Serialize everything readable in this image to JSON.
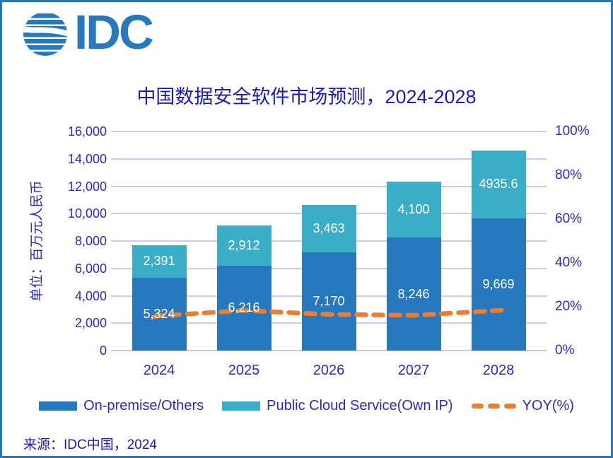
{
  "logo": {
    "text": "IDC"
  },
  "source": "来源：IDC中国，2024",
  "colors": {
    "bar_primary": "#2878BE",
    "bar_secondary": "#3AAEC6",
    "line": "#ED7D31",
    "grid": "#C9C9F2",
    "axis_text": "#2B2BBB",
    "title_text": "#1B1BB0",
    "data_label_text": "#FFFFFF",
    "border": "#2878BE"
  },
  "chart_data": {
    "type": "bar",
    "subtype": "stacked-column-with-line",
    "title": "中国数据安全软件市场预测，2024-2028",
    "categories": [
      "2024",
      "2025",
      "2026",
      "2027",
      "2028"
    ],
    "series": [
      {
        "name": "On-premise/Others",
        "type": "bar",
        "color": "#2878BE",
        "values": [
          5324,
          6216,
          7170,
          8246,
          9669
        ],
        "labels": [
          "5,324",
          "6,216",
          "7,170",
          "8,246",
          "9,669"
        ]
      },
      {
        "name": "Public Cloud Service(Own IP)",
        "type": "bar",
        "color": "#3AAEC6",
        "values": [
          2391,
          2912,
          3463,
          4100,
          4935.6
        ],
        "labels": [
          "2,391",
          "2,912",
          "3,463",
          "4,100",
          "4935.6"
        ]
      },
      {
        "name": "YOY(%)",
        "type": "line",
        "style": "dashed",
        "color": "#ED7D31",
        "axis": "right",
        "values": [
          15.9,
          18.3,
          16.5,
          16.1,
          18.3
        ]
      }
    ],
    "left_axis": {
      "title": "单位：百万元人民币",
      "min": 0,
      "max": 16000,
      "step": 2000,
      "tick_labels": [
        "16,000",
        "14,000",
        "12,000",
        "10,000",
        "8,000",
        "6,000",
        "4,000",
        "2,000",
        "0"
      ]
    },
    "right_axis": {
      "min": 0,
      "max": 100,
      "step": 20,
      "tick_labels": [
        "100%",
        "80%",
        "60%",
        "40%",
        "20%",
        "0%"
      ]
    },
    "grid": "horizontal",
    "legend_position": "bottom",
    "legend": [
      {
        "label": "On-premise/Others",
        "swatch": "bar",
        "color": "#2878BE"
      },
      {
        "label": "Public Cloud Service(Own IP)",
        "swatch": "bar",
        "color": "#3AAEC6"
      },
      {
        "label": "YOY(%)",
        "swatch": "dash",
        "color": "#ED7D31"
      }
    ]
  }
}
